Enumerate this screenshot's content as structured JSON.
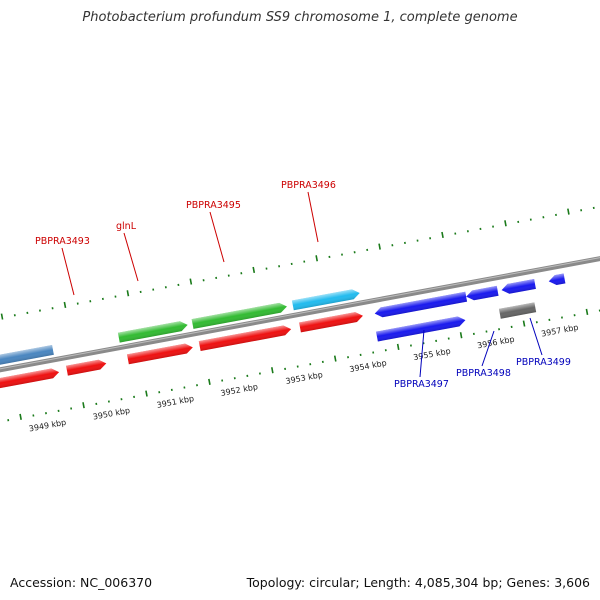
{
  "title": "Photobacterium profundum SS9 chromosome 1, complete genome",
  "footer": {
    "accession": "Accession: NC_006370",
    "summary": "Topology: circular; Length: 4,085,304 bp; Genes: 3,606"
  },
  "colors": {
    "backbone": "#808080",
    "tick": "#1a7a1a",
    "label_red": "#cc0000",
    "label_blue": "#0000bb"
  },
  "scale_ticks": [
    "3949 kbp",
    "3950 kbp",
    "3951 kbp",
    "3952 kbp",
    "3953 kbp",
    "3954 kbp",
    "3955 kbp",
    "3956 kbp",
    "3957 kbp"
  ],
  "genes": [
    {
      "id": "PBPRA3493",
      "label": "PBPRA3493",
      "labeled": true,
      "color": "#ee1111",
      "label_color": "#cc0000"
    },
    {
      "id": "glnL",
      "label": "glnL",
      "labeled": true,
      "color": "#33bb33",
      "label_color": "#cc0000"
    },
    {
      "id": "PBPRA3495",
      "label": "PBPRA3495",
      "labeled": true,
      "color": "#33bb33",
      "label_color": "#cc0000"
    },
    {
      "id": "PBPRA3496",
      "label": "PBPRA3496",
      "labeled": true,
      "color": "#22bbee",
      "label_color": "#cc0000"
    },
    {
      "id": "PBPRA3497",
      "label": "PBPRA3497",
      "labeled": true,
      "color": "#1a1aee",
      "label_color": "#0000bb"
    },
    {
      "id": "PBPRA3498",
      "label": "PBPRA3498",
      "labeled": true,
      "color": "#1a1aee",
      "label_color": "#0000bb"
    },
    {
      "id": "PBPRA3499",
      "label": "PBPRA3499",
      "labeled": true,
      "color": "#1a1aee",
      "label_color": "#0000bb"
    }
  ]
}
